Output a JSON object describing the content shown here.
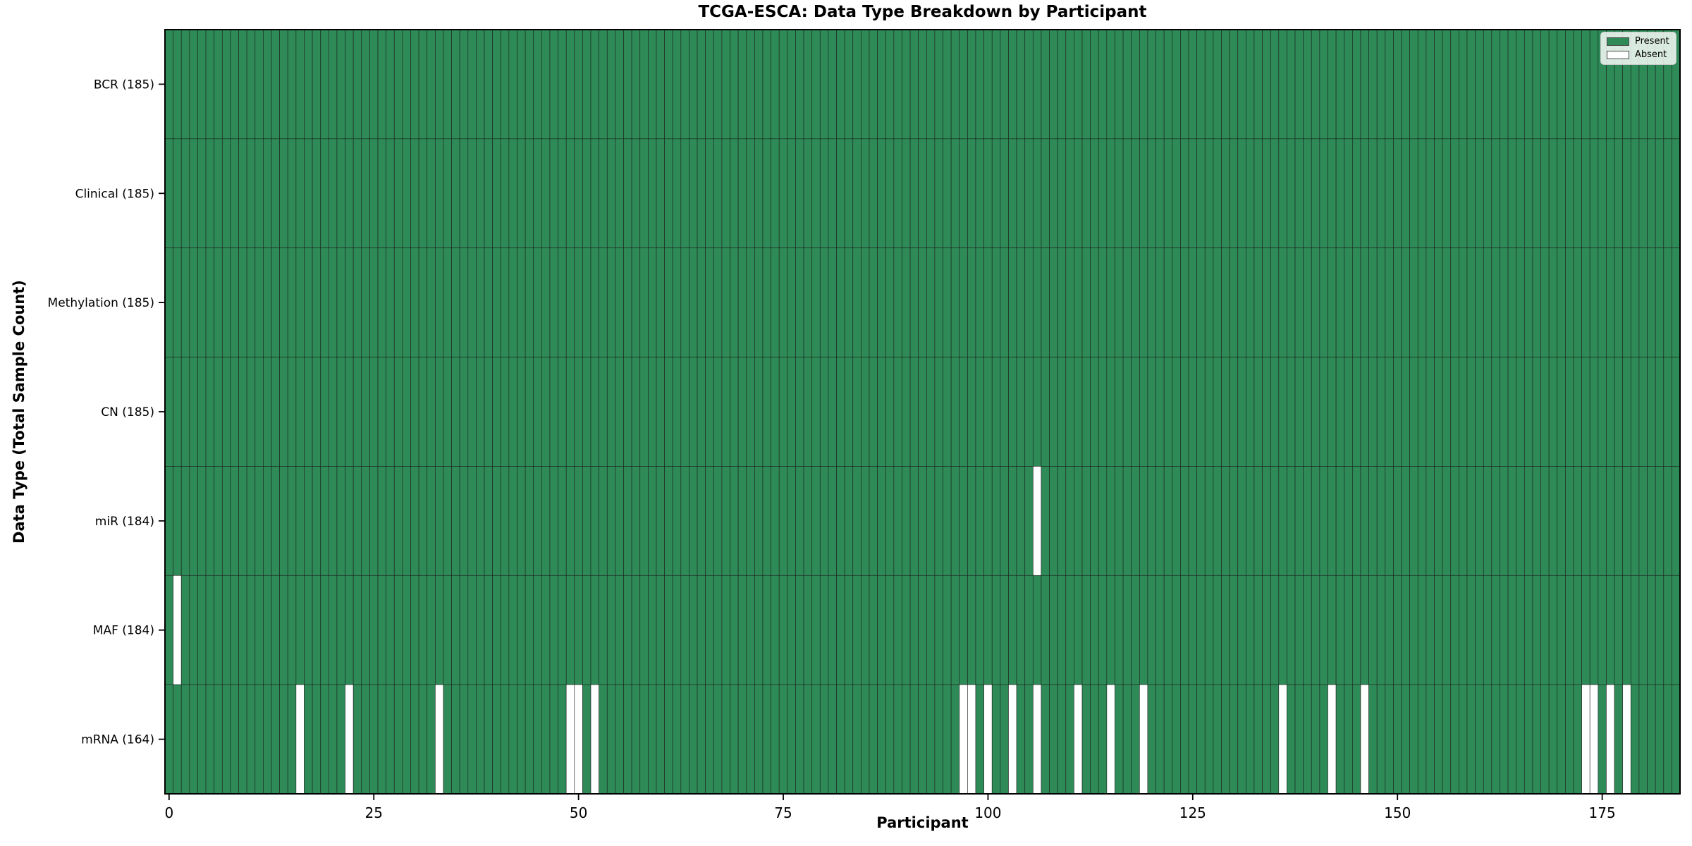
{
  "title": "TCGA-ESCA: Data Type Breakdown by Participant",
  "chart_data": {
    "type": "heatmap",
    "title": "TCGA-ESCA: Data Type Breakdown by Participant",
    "xlabel": "Participant",
    "ylabel": "Data Type (Total Sample Count)",
    "n_participants": 185,
    "x_ticks": [
      0,
      25,
      50,
      75,
      100,
      125,
      150,
      175
    ],
    "legend_position": "upper right",
    "legend": [
      {
        "label": "Present",
        "color": "#2e8b57"
      },
      {
        "label": "Absent",
        "color": "#ffffff"
      }
    ],
    "colors": {
      "present": "#2e8b57",
      "absent": "#ffffff",
      "edge": "#1a1a1a",
      "spine": "#000000",
      "text": "#000000"
    },
    "rows": [
      {
        "label": "BCR (185)",
        "data_type": "BCR",
        "total": 185,
        "absent": []
      },
      {
        "label": "Clinical (185)",
        "data_type": "Clinical",
        "total": 185,
        "absent": []
      },
      {
        "label": "Methylation (185)",
        "data_type": "Methylation",
        "total": 185,
        "absent": []
      },
      {
        "label": "CN (185)",
        "data_type": "CN",
        "total": 185,
        "absent": []
      },
      {
        "label": "miR (184)",
        "data_type": "miR",
        "total": 184,
        "absent": [
          106
        ]
      },
      {
        "label": "MAF (184)",
        "data_type": "MAF",
        "total": 184,
        "absent": [
          1
        ]
      },
      {
        "label": "mRNA (164)",
        "data_type": "mRNA",
        "total": 164,
        "absent": [
          16,
          22,
          33,
          49,
          50,
          52,
          97,
          98,
          100,
          103,
          106,
          111,
          115,
          119,
          136,
          142,
          146,
          173,
          174,
          176,
          178
        ]
      }
    ]
  }
}
